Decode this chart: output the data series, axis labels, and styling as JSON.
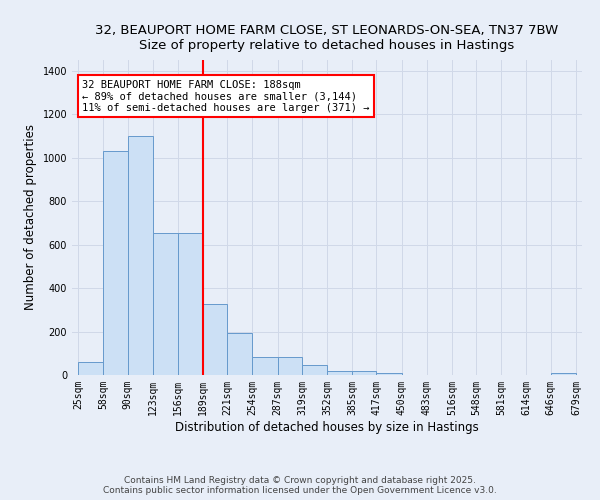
{
  "title_line1": "32, BEAUPORT HOME FARM CLOSE, ST LEONARDS-ON-SEA, TN37 7BW",
  "title_line2": "Size of property relative to detached houses in Hastings",
  "xlabel": "Distribution of detached houses by size in Hastings",
  "ylabel": "Number of detached properties",
  "bar_edges": [
    25,
    58,
    90,
    123,
    156,
    189,
    221,
    254,
    287,
    319,
    352,
    385,
    417,
    450,
    483,
    516,
    548,
    581,
    614,
    646,
    679
  ],
  "bar_heights": [
    60,
    1030,
    1100,
    655,
    655,
    325,
    192,
    85,
    85,
    45,
    20,
    20,
    10,
    0,
    0,
    0,
    0,
    0,
    0,
    10
  ],
  "bar_color": "#cce0f5",
  "bar_edge_color": "#6699cc",
  "vline_x": 189,
  "vline_color": "red",
  "annotation_text": "32 BEAUPORT HOME FARM CLOSE: 188sqm\n← 89% of detached houses are smaller (3,144)\n11% of semi-detached houses are larger (371) →",
  "annotation_box_color": "white",
  "annotation_box_edge_color": "red",
  "ylim": [
    0,
    1450
  ],
  "yticks": [
    0,
    200,
    400,
    600,
    800,
    1000,
    1200,
    1400
  ],
  "tick_labels": [
    "25sqm",
    "58sqm",
    "90sqm",
    "123sqm",
    "156sqm",
    "189sqm",
    "221sqm",
    "254sqm",
    "287sqm",
    "319sqm",
    "352sqm",
    "385sqm",
    "417sqm",
    "450sqm",
    "483sqm",
    "516sqm",
    "548sqm",
    "581sqm",
    "614sqm",
    "646sqm",
    "679sqm"
  ],
  "grid_color": "#d0d8e8",
  "bg_color": "#e8eef8",
  "footnote": "Contains HM Land Registry data © Crown copyright and database right 2025.\nContains public sector information licensed under the Open Government Licence v3.0.",
  "title_fontsize": 9.5,
  "label_fontsize": 8.5,
  "tick_fontsize": 7,
  "footnote_fontsize": 6.5,
  "annotation_fontsize": 7.5
}
